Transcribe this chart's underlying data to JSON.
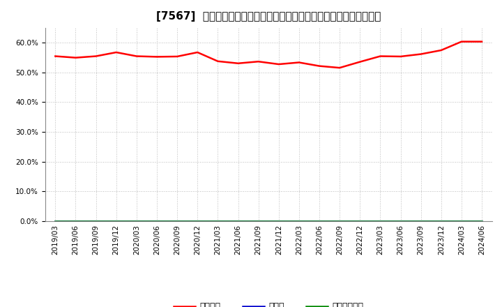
{
  "title": "[7567]  自己資本、のれん、繰延税金資産の総資産に対する比率の推移",
  "x_labels": [
    "2019/03",
    "2019/06",
    "2019/09",
    "2019/12",
    "2020/03",
    "2020/06",
    "2020/09",
    "2020/12",
    "2021/03",
    "2021/06",
    "2021/09",
    "2021/12",
    "2022/03",
    "2022/06",
    "2022/09",
    "2022/12",
    "2023/03",
    "2023/06",
    "2023/09",
    "2023/12",
    "2024/03",
    "2024/06"
  ],
  "jikoshihon": [
    0.554,
    0.549,
    0.554,
    0.567,
    0.554,
    0.552,
    0.553,
    0.567,
    0.537,
    0.53,
    0.536,
    0.527,
    0.533,
    0.521,
    0.515,
    0.535,
    0.554,
    0.553,
    0.561,
    0.574,
    0.603,
    0.603
  ],
  "noren": [
    0,
    0,
    0,
    0,
    0,
    0,
    0,
    0,
    0,
    0,
    0,
    0,
    0,
    0,
    0,
    0,
    0,
    0,
    0,
    0,
    0,
    0
  ],
  "kurinobe": [
    0,
    0,
    0,
    0,
    0,
    0,
    0,
    0,
    0,
    0,
    0,
    0,
    0,
    0,
    0,
    0,
    0,
    0,
    0,
    0,
    0,
    0
  ],
  "line_color_jikoshihon": "#ff0000",
  "line_color_noren": "#0000cc",
  "line_color_kurinobe": "#008800",
  "legend_label_jikoshihon": "自己資本",
  "legend_label_noren": "のれん",
  "legend_label_kurinobe": "繰延税金資産",
  "ylim": [
    0.0,
    0.65
  ],
  "yticks": [
    0.0,
    0.1,
    0.2,
    0.3,
    0.4,
    0.5,
    0.6
  ],
  "background_color": "#ffffff",
  "grid_color": "#bbbbbb",
  "title_fontsize": 11,
  "axis_fontsize": 7.5,
  "legend_fontsize": 9
}
